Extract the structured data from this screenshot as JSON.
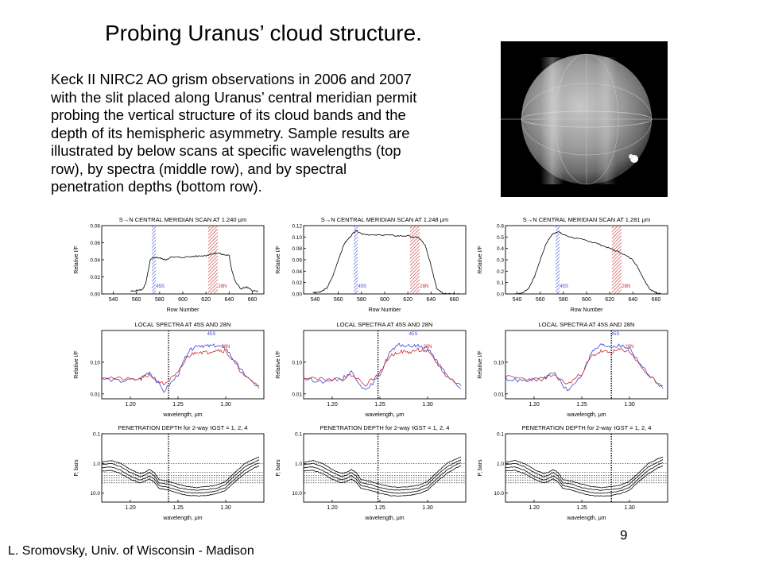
{
  "slide": {
    "title": "Probing Uranus’ cloud structure.",
    "body_lines": [
      "Keck II NIRC2 AO grism observations in 2006 and 2007",
      "with the slit placed along Uranus’ central meridian permit",
      "probing the vertical structure of its cloud bands and the",
      "depth of its hemispheric asymmetry. Sample results are",
      "illustrated by below scans at specific wavelengths (top",
      "row), by spectra (middle row), and by spectral",
      "penetration depths (bottom row)."
    ],
    "footer": "L. Sromovsky, Univ. of Wisconsin - Madison",
    "page_number": "9",
    "planet_image": {
      "description_icon": "uranus-image",
      "background": "#000000"
    }
  },
  "colors": {
    "blue": "#3a48d8",
    "red": "#c83030",
    "line": "#000000"
  },
  "chart_data": [
    {
      "type": "line",
      "panel": "scan",
      "title": "S→N CENTRAL MERIDIAN SCAN AT 1.240 μm",
      "xlabel": "Row Number",
      "ylabel": "Relative I/F",
      "xlim": [
        530,
        670
      ],
      "ylim": [
        0,
        0.08
      ],
      "xticks": [
        "540",
        "560",
        "580",
        "600",
        "620",
        "640",
        "660"
      ],
      "yticks": [
        "0.00",
        "0.02",
        "0.04",
        "0.06",
        "0.08"
      ],
      "bands": [
        {
          "label": "45S",
          "x": 575,
          "color": "#3a48d8"
        },
        {
          "label": "28N",
          "x": 626,
          "color": "#c83030"
        }
      ],
      "x": [
        555,
        560,
        565,
        568,
        572,
        576,
        580,
        585,
        590,
        600,
        610,
        620,
        625,
        630,
        635,
        640,
        642,
        645,
        650,
        655,
        660,
        665
      ],
      "y": [
        0.003,
        0.004,
        0.005,
        0.012,
        0.04,
        0.043,
        0.042,
        0.04,
        0.043,
        0.043,
        0.044,
        0.045,
        0.047,
        0.048,
        0.046,
        0.045,
        0.03,
        0.015,
        0.006,
        0.008,
        0.004,
        0.003
      ]
    },
    {
      "type": "line",
      "panel": "scan",
      "title": "S→N CENTRAL MERIDIAN SCAN AT 1.248 μm",
      "xlabel": "Row Number",
      "ylabel": "Relative I/F",
      "xlim": [
        530,
        670
      ],
      "ylim": [
        0,
        0.12
      ],
      "xticks": [
        "540",
        "560",
        "580",
        "600",
        "620",
        "640",
        "660"
      ],
      "yticks": [
        "0.00",
        "0.02",
        "0.04",
        "0.06",
        "0.08",
        "0.10",
        "0.12"
      ],
      "bands": [
        {
          "label": "45S",
          "x": 575,
          "color": "#3a48d8"
        },
        {
          "label": "28N",
          "x": 626,
          "color": "#c83030"
        }
      ],
      "x": [
        538,
        545,
        550,
        555,
        560,
        565,
        570,
        575,
        580,
        590,
        600,
        610,
        620,
        630,
        635,
        640,
        645,
        650,
        655,
        660,
        665
      ],
      "y": [
        0.002,
        0.004,
        0.01,
        0.03,
        0.06,
        0.088,
        0.1,
        0.112,
        0.106,
        0.103,
        0.104,
        0.102,
        0.102,
        0.098,
        0.085,
        0.05,
        0.01,
        0.002,
        0.0,
        0.0,
        0.0
      ]
    },
    {
      "type": "line",
      "panel": "scan",
      "title": "S→N CENTRAL MERIDIAN SCAN AT 1.281 μm",
      "xlabel": "Row Number",
      "ylabel": "Relative I/F",
      "xlim": [
        530,
        670
      ],
      "ylim": [
        0,
        0.6
      ],
      "xticks": [
        "540",
        "560",
        "580",
        "600",
        "620",
        "640",
        "660"
      ],
      "yticks": [
        "0.0",
        "0.1",
        "0.2",
        "0.3",
        "0.4",
        "0.5",
        "0.6"
      ],
      "bands": [
        {
          "label": "45S",
          "x": 575,
          "color": "#3a48d8"
        },
        {
          "label": "28N",
          "x": 626,
          "color": "#c83030"
        }
      ],
      "x": [
        538,
        545,
        550,
        555,
        560,
        565,
        570,
        575,
        580,
        590,
        600,
        610,
        620,
        630,
        640,
        645,
        650,
        655,
        660,
        665
      ],
      "y": [
        0.0,
        0.01,
        0.05,
        0.15,
        0.3,
        0.44,
        0.52,
        0.55,
        0.52,
        0.49,
        0.47,
        0.44,
        0.4,
        0.36,
        0.3,
        0.22,
        0.12,
        0.04,
        0.01,
        0.0
      ]
    },
    {
      "type": "line",
      "panel": "spectra",
      "title": "LOCAL SPECTRA AT 45S AND 28N",
      "xlabel": "wavelength, μm",
      "ylabel": "Relative I/F",
      "xlim": [
        1.17,
        1.34
      ],
      "ylog": true,
      "ylim": [
        0.007,
        1.0
      ],
      "xticks": [
        "1.20",
        "1.25",
        "1.30"
      ],
      "yticks": [
        "0.10",
        "0.01"
      ],
      "marker": 1.24,
      "series": [
        {
          "name": "45S",
          "color": "#3a48d8",
          "x": [
            1.17,
            1.19,
            1.21,
            1.22,
            1.235,
            1.25,
            1.26,
            1.27,
            1.28,
            1.29,
            1.3,
            1.31,
            1.32,
            1.335
          ],
          "y": [
            0.03,
            0.025,
            0.03,
            0.05,
            0.012,
            0.04,
            0.2,
            0.35,
            0.32,
            0.33,
            0.28,
            0.1,
            0.04,
            0.015
          ]
        },
        {
          "name": "28N",
          "color": "#c83030",
          "x": [
            1.17,
            1.19,
            1.21,
            1.22,
            1.235,
            1.25,
            1.26,
            1.27,
            1.28,
            1.29,
            1.3,
            1.31,
            1.32,
            1.335
          ],
          "y": [
            0.035,
            0.03,
            0.028,
            0.04,
            0.02,
            0.045,
            0.15,
            0.22,
            0.2,
            0.25,
            0.22,
            0.09,
            0.035,
            0.018
          ]
        }
      ]
    },
    {
      "type": "line",
      "panel": "spectra",
      "title": "LOCAL SPECTRA AT 45S AND 28N",
      "xlabel": "wavelength, μm",
      "ylabel": "Relative I/F",
      "xlim": [
        1.17,
        1.34
      ],
      "ylog": true,
      "ylim": [
        0.007,
        1.0
      ],
      "xticks": [
        "1.20",
        "1.25",
        "1.30"
      ],
      "yticks": [
        "0.10",
        "0.01"
      ],
      "marker": 1.248,
      "series": [
        {
          "name": "45S",
          "color": "#3a48d8",
          "x": [
            1.17,
            1.19,
            1.21,
            1.22,
            1.235,
            1.25,
            1.26,
            1.27,
            1.28,
            1.29,
            1.3,
            1.31,
            1.32,
            1.335
          ],
          "y": [
            0.03,
            0.025,
            0.03,
            0.05,
            0.012,
            0.04,
            0.2,
            0.35,
            0.32,
            0.33,
            0.28,
            0.1,
            0.04,
            0.015
          ]
        },
        {
          "name": "28N",
          "color": "#c83030",
          "x": [
            1.17,
            1.19,
            1.21,
            1.22,
            1.235,
            1.25,
            1.26,
            1.27,
            1.28,
            1.29,
            1.3,
            1.31,
            1.32,
            1.335
          ],
          "y": [
            0.035,
            0.03,
            0.028,
            0.04,
            0.02,
            0.045,
            0.15,
            0.22,
            0.2,
            0.25,
            0.22,
            0.09,
            0.035,
            0.018
          ]
        }
      ]
    },
    {
      "type": "line",
      "panel": "spectra",
      "title": "LOCAL SPECTRA AT 45S AND 28N",
      "xlabel": "wavelength, μm",
      "ylabel": "Relative I/F",
      "xlim": [
        1.17,
        1.34
      ],
      "ylog": true,
      "ylim": [
        0.007,
        1.0
      ],
      "xticks": [
        "1.20",
        "1.25",
        "1.30"
      ],
      "yticks": [
        "0.10",
        "0.01"
      ],
      "marker": 1.281,
      "series": [
        {
          "name": "45S",
          "color": "#3a48d8",
          "x": [
            1.17,
            1.19,
            1.21,
            1.22,
            1.235,
            1.25,
            1.26,
            1.27,
            1.28,
            1.29,
            1.3,
            1.31,
            1.32,
            1.335
          ],
          "y": [
            0.03,
            0.025,
            0.03,
            0.05,
            0.012,
            0.04,
            0.2,
            0.35,
            0.32,
            0.33,
            0.28,
            0.1,
            0.04,
            0.015
          ]
        },
        {
          "name": "28N",
          "color": "#c83030",
          "x": [
            1.17,
            1.19,
            1.21,
            1.22,
            1.235,
            1.25,
            1.26,
            1.27,
            1.28,
            1.29,
            1.3,
            1.31,
            1.32,
            1.335
          ],
          "y": [
            0.035,
            0.03,
            0.028,
            0.04,
            0.02,
            0.045,
            0.15,
            0.22,
            0.2,
            0.25,
            0.22,
            0.09,
            0.035,
            0.018
          ]
        }
      ]
    },
    {
      "type": "line",
      "panel": "depth",
      "title": "PENETRATION DEPTH for 2-way τGST = 1, 2, 4",
      "xlabel": "wavelength, μm",
      "ylabel": "P, bars",
      "xlim": [
        1.17,
        1.34
      ],
      "ylog": true,
      "yreverse": true,
      "ylim": [
        0.1,
        20.0
      ],
      "xticks": [
        "1.20",
        "1.25",
        "1.30"
      ],
      "yticks": [
        "0.1",
        "1.0",
        "10.0"
      ],
      "marker": 1.24,
      "hlines": [
        1.0,
        2.0,
        2.5,
        3.0,
        3.6,
        4.5
      ],
      "x": [
        1.17,
        1.18,
        1.19,
        1.2,
        1.21,
        1.215,
        1.22,
        1.225,
        1.23,
        1.24,
        1.25,
        1.26,
        1.27,
        1.28,
        1.29,
        1.3,
        1.31,
        1.32,
        1.33,
        1.335
      ],
      "series": [
        {
          "name": "1",
          "y": [
            0.9,
            0.8,
            1.0,
            1.6,
            2.2,
            2.0,
            1.6,
            2.0,
            3.5,
            4.0,
            5.0,
            6.0,
            6.5,
            6.0,
            5.5,
            4.0,
            2.0,
            1.0,
            0.7,
            0.6
          ]
        },
        {
          "name": "2",
          "y": [
            1.1,
            1.0,
            1.3,
            2.0,
            2.8,
            2.5,
            2.0,
            2.6,
            4.5,
            5.0,
            6.5,
            7.5,
            8.0,
            7.5,
            7.0,
            5.0,
            2.5,
            1.3,
            0.9,
            0.75
          ]
        },
        {
          "name": "4",
          "y": [
            1.4,
            1.3,
            1.7,
            2.7,
            3.6,
            3.2,
            2.6,
            3.3,
            5.5,
            6.5,
            8.0,
            9.5,
            10.0,
            9.5,
            8.5,
            6.5,
            3.2,
            1.7,
            1.1,
            0.95
          ]
        },
        {
          "name": "",
          "y": [
            1.8,
            1.7,
            2.2,
            3.4,
            4.5,
            4.0,
            3.3,
            4.2,
            6.8,
            8.0,
            10.0,
            12.0,
            12.5,
            12.0,
            10.5,
            8.0,
            4.0,
            2.2,
            1.4,
            1.2
          ]
        }
      ]
    },
    {
      "type": "line",
      "panel": "depth",
      "title": "PENETRATION DEPTH for 2-way τGST = 1, 2, 4",
      "xlabel": "wavelength, μm",
      "ylabel": "P, bars",
      "xlim": [
        1.17,
        1.34
      ],
      "ylog": true,
      "yreverse": true,
      "ylim": [
        0.1,
        20.0
      ],
      "xticks": [
        "1.20",
        "1.25",
        "1.30"
      ],
      "yticks": [
        "0.1",
        "1.0",
        "10.0"
      ],
      "marker": 1.248,
      "hlines": [
        1.0,
        2.0,
        2.5,
        3.0,
        3.6,
        4.5
      ],
      "x": [
        1.17,
        1.18,
        1.19,
        1.2,
        1.21,
        1.215,
        1.22,
        1.225,
        1.23,
        1.24,
        1.25,
        1.26,
        1.27,
        1.28,
        1.29,
        1.3,
        1.31,
        1.32,
        1.33,
        1.335
      ],
      "series": [
        {
          "name": "1",
          "y": [
            0.9,
            0.8,
            1.0,
            1.6,
            2.2,
            2.0,
            1.6,
            2.0,
            3.5,
            4.0,
            5.0,
            6.0,
            6.5,
            6.0,
            5.5,
            4.0,
            2.0,
            1.0,
            0.7,
            0.6
          ]
        },
        {
          "name": "2",
          "y": [
            1.1,
            1.0,
            1.3,
            2.0,
            2.8,
            2.5,
            2.0,
            2.6,
            4.5,
            5.0,
            6.5,
            7.5,
            8.0,
            7.5,
            7.0,
            5.0,
            2.5,
            1.3,
            0.9,
            0.75
          ]
        },
        {
          "name": "4",
          "y": [
            1.4,
            1.3,
            1.7,
            2.7,
            3.6,
            3.2,
            2.6,
            3.3,
            5.5,
            6.5,
            8.0,
            9.5,
            10.0,
            9.5,
            8.5,
            6.5,
            3.2,
            1.7,
            1.1,
            0.95
          ]
        },
        {
          "name": "",
          "y": [
            1.8,
            1.7,
            2.2,
            3.4,
            4.5,
            4.0,
            3.3,
            4.2,
            6.8,
            8.0,
            10.0,
            12.0,
            12.5,
            12.0,
            10.5,
            8.0,
            4.0,
            2.2,
            1.4,
            1.2
          ]
        }
      ]
    },
    {
      "type": "line",
      "panel": "depth",
      "title": "PENETRATION DEPTH for 2-way τGST = 1, 2, 4",
      "xlabel": "wavelength, μm",
      "ylabel": "P, bars",
      "xlim": [
        1.17,
        1.34
      ],
      "ylog": true,
      "yreverse": true,
      "ylim": [
        0.1,
        20.0
      ],
      "xticks": [
        "1.20",
        "1.25",
        "1.30"
      ],
      "yticks": [
        "0.1",
        "1.0",
        "10.0"
      ],
      "marker": 1.281,
      "hlines": [
        1.0,
        2.0,
        2.5,
        3.0,
        3.6,
        4.5
      ],
      "x": [
        1.17,
        1.18,
        1.19,
        1.2,
        1.21,
        1.215,
        1.22,
        1.225,
        1.23,
        1.24,
        1.25,
        1.26,
        1.27,
        1.28,
        1.29,
        1.3,
        1.31,
        1.32,
        1.33,
        1.335
      ],
      "series": [
        {
          "name": "1",
          "y": [
            0.9,
            0.8,
            1.0,
            1.6,
            2.2,
            2.0,
            1.6,
            2.0,
            3.5,
            4.0,
            5.0,
            6.0,
            6.5,
            6.0,
            5.5,
            4.0,
            2.0,
            1.0,
            0.7,
            0.6
          ]
        },
        {
          "name": "2",
          "y": [
            1.1,
            1.0,
            1.3,
            2.0,
            2.8,
            2.5,
            2.0,
            2.6,
            4.5,
            5.0,
            6.5,
            7.5,
            8.0,
            7.5,
            7.0,
            5.0,
            2.5,
            1.3,
            0.9,
            0.75
          ]
        },
        {
          "name": "4",
          "y": [
            1.4,
            1.3,
            1.7,
            2.7,
            3.6,
            3.2,
            2.6,
            3.3,
            5.5,
            6.5,
            8.0,
            9.5,
            10.0,
            9.5,
            8.5,
            6.5,
            3.2,
            1.7,
            1.1,
            0.95
          ]
        },
        {
          "name": "",
          "y": [
            1.8,
            1.7,
            2.2,
            3.4,
            4.5,
            4.0,
            3.3,
            4.2,
            6.8,
            8.0,
            10.0,
            12.0,
            12.5,
            12.0,
            10.5,
            8.0,
            4.0,
            2.2,
            1.4,
            1.2
          ]
        }
      ]
    }
  ]
}
